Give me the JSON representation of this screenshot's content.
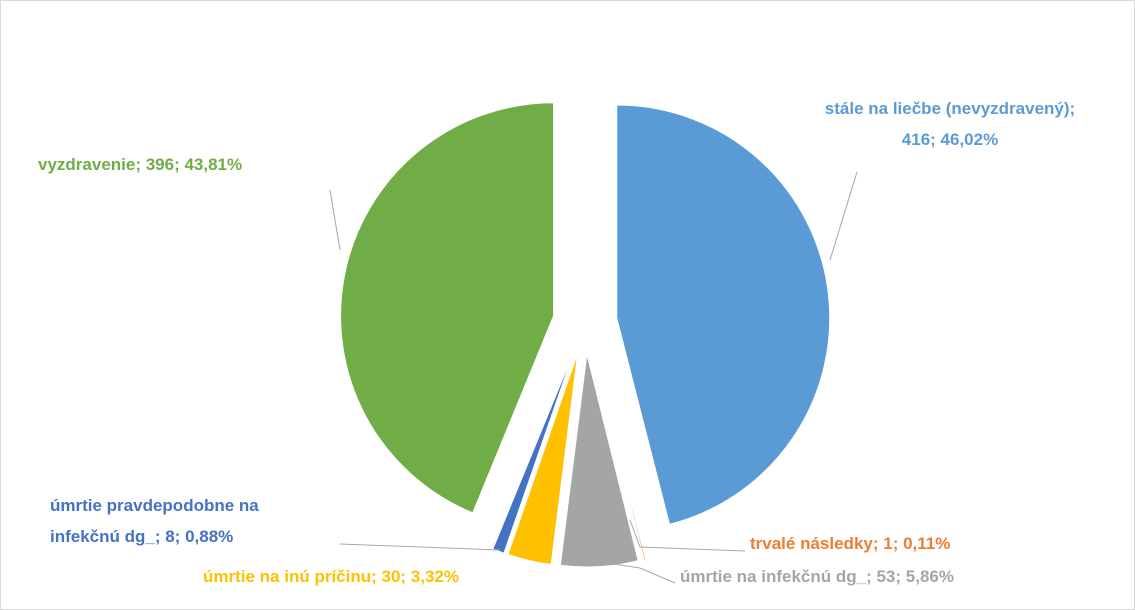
{
  "chart_data": {
    "type": "pie",
    "values": [
      416,
      1,
      53,
      30,
      8,
      396
    ],
    "labels": [
      [
        "stále na liečbe (nevyzdravený);",
        "416; 46,02%"
      ],
      [
        "trvalé následky; 1; 0,11%"
      ],
      [
        "úmrtie na infekčnú dg_; 53; 5,86%"
      ],
      [
        "úmrtie na inú príčinu; 30; 3,32%"
      ],
      [
        "úmrtie pravdepodobne na",
        "infekčnú dg_; 8; 0,88%"
      ],
      [
        "vyzdravenie; 396; 43,81%"
      ]
    ],
    "colors": [
      "#5b9bd5",
      "#ed7d31",
      "#a5a5a5",
      "#ffc000",
      "#4472c4",
      "#70ad47"
    ],
    "exploded": true
  }
}
